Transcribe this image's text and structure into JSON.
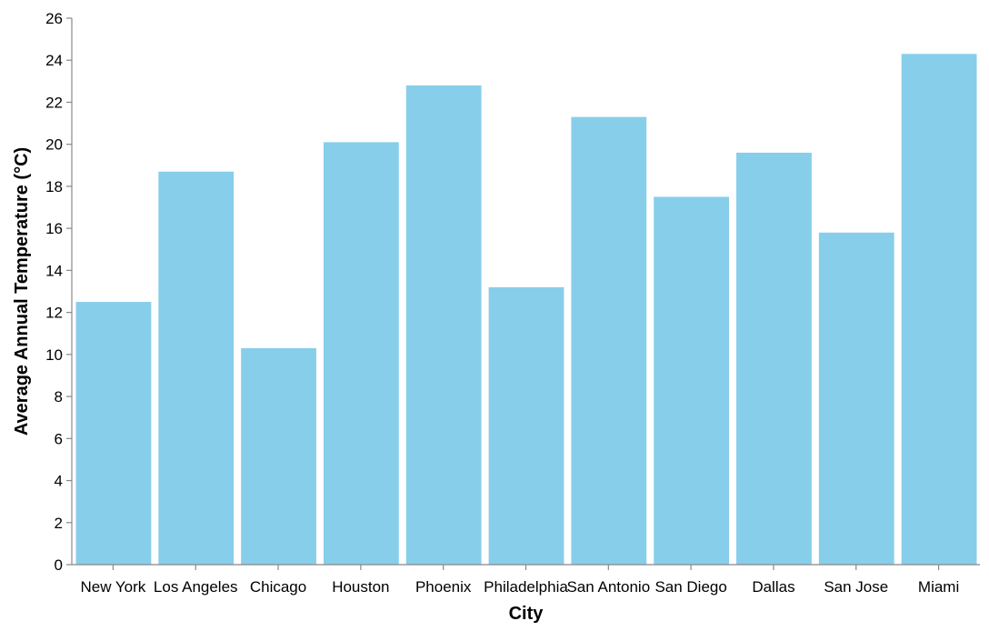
{
  "chart_data": {
    "type": "bar",
    "title": "",
    "xlabel": "City",
    "ylabel": "Average Annual Temperature (°C)",
    "categories": [
      "New York",
      "Los Angeles",
      "Chicago",
      "Houston",
      "Phoenix",
      "Philadelphia",
      "San Antonio",
      "San Diego",
      "Dallas",
      "San Jose",
      "Miami"
    ],
    "values": [
      12.5,
      18.7,
      10.3,
      20.1,
      22.8,
      13.2,
      21.3,
      17.5,
      19.6,
      15.8,
      24.3
    ],
    "ylim": [
      0,
      26
    ],
    "yticks": [
      0,
      2,
      4,
      6,
      8,
      10,
      12,
      14,
      16,
      18,
      20,
      22,
      24,
      26
    ],
    "grid": false,
    "legend": "none",
    "bar_color": "#87CEEB"
  }
}
